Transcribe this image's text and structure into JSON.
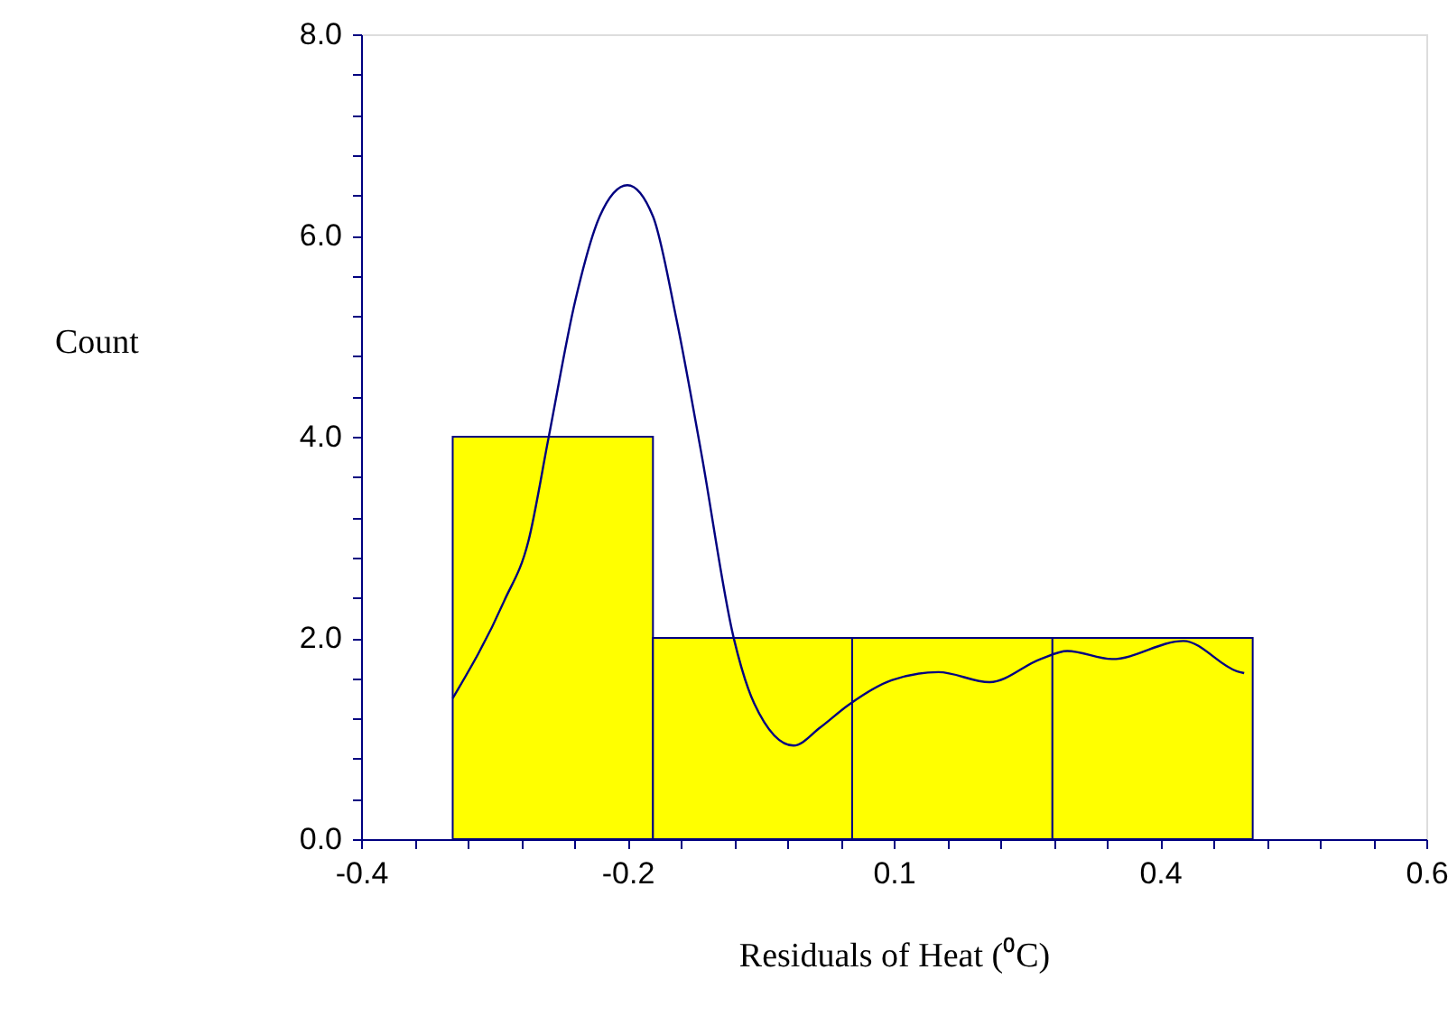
{
  "chart_data": {
    "type": "histogram",
    "xlabel": "Residuals of Heat (⁰C)",
    "ylabel": "Count",
    "grid": false,
    "bins": [
      -0.314,
      -0.126,
      0.061,
      0.249,
      0.437
    ],
    "values": [
      4,
      2,
      2,
      2
    ],
    "color": "#ffff00",
    "series": [
      {
        "type": "line",
        "color": "#000080",
        "x": [
          -0.314,
          -0.266,
          -0.243,
          -0.224,
          -0.199,
          -0.176,
          -0.15,
          -0.126,
          -0.104,
          -0.081,
          -0.05,
          -0.031,
          0.006,
          0.031,
          0.057,
          0.098,
          0.142,
          0.19,
          0.238,
          0.263,
          0.305,
          0.372,
          0.422,
          0.429
        ],
        "values": [
          1.4,
          2.36,
          2.96,
          3.99,
          5.35,
          6.19,
          6.5,
          6.19,
          5.17,
          3.86,
          1.99,
          1.35,
          0.93,
          1.11,
          1.33,
          1.58,
          1.66,
          1.56,
          1.79,
          1.87,
          1.79,
          1.97,
          1.67,
          1.65
        ]
      }
    ],
    "xlim": [
      -0.4,
      0.6
    ],
    "xticks": [
      {
        "value": -0.4,
        "label": "-0.4"
      },
      {
        "value": -0.35,
        "label": null
      },
      {
        "value": -0.3,
        "label": null
      },
      {
        "value": -0.25,
        "label": null
      },
      {
        "value": -0.2,
        "label": null
      },
      {
        "value": -0.15,
        "label": "-0.2"
      },
      {
        "value": -0.1,
        "label": null
      },
      {
        "value": -0.05,
        "label": null
      },
      {
        "value": 0,
        "label": null
      },
      {
        "value": 0.05,
        "label": null
      },
      {
        "value": 0.1,
        "label": "0.1"
      },
      {
        "value": 0.15,
        "label": null
      },
      {
        "value": 0.2,
        "label": null
      },
      {
        "value": 0.25,
        "label": null
      },
      {
        "value": 0.3,
        "label": null
      },
      {
        "value": 0.35,
        "label": "0.4"
      },
      {
        "value": 0.4,
        "label": null
      },
      {
        "value": 0.45,
        "label": null
      },
      {
        "value": 0.5,
        "label": null
      },
      {
        "value": 0.55,
        "label": null
      },
      {
        "value": 0.6,
        "label": "0.6"
      }
    ],
    "ylim": [
      0,
      8
    ],
    "yticks": [
      {
        "value": 0,
        "label": "0.0"
      },
      {
        "value": 0.4,
        "label": null
      },
      {
        "value": 0.8,
        "label": null
      },
      {
        "value": 1.2,
        "label": null
      },
      {
        "value": 1.6,
        "label": null
      },
      {
        "value": 2,
        "label": "2.0"
      },
      {
        "value": 2.4,
        "label": null
      },
      {
        "value": 2.8,
        "label": null
      },
      {
        "value": 3.2,
        "label": null
      },
      {
        "value": 3.6,
        "label": null
      },
      {
        "value": 4,
        "label": "4.0"
      },
      {
        "value": 4.4,
        "label": null
      },
      {
        "value": 4.8,
        "label": null
      },
      {
        "value": 5.2,
        "label": null
      },
      {
        "value": 5.6,
        "label": null
      },
      {
        "value": 6,
        "label": "6.0"
      },
      {
        "value": 6.4,
        "label": null
      },
      {
        "value": 6.8,
        "label": null
      },
      {
        "value": 7.2,
        "label": null
      },
      {
        "value": 7.6,
        "label": null
      },
      {
        "value": 8,
        "label": "8.0"
      }
    ]
  }
}
